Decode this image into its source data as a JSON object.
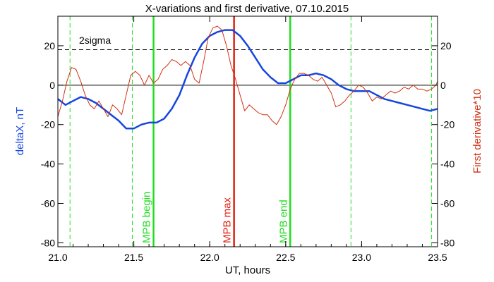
{
  "chart_data": {
    "type": "line",
    "title": "X-variations and first derivative, 07.10.2015",
    "xlabel": "UT, hours",
    "ylabel_left": "deltaX, nT",
    "ylabel_right": "First derivative*10",
    "xlim": [
      21.0,
      23.5
    ],
    "ylim": [
      -82,
      35
    ],
    "x_ticks": [
      "21.0",
      "21.5",
      "22.0",
      "22.5",
      "23.0",
      "23.5"
    ],
    "x_tick_values": [
      21.0,
      21.5,
      22.0,
      22.5,
      23.0,
      23.5
    ],
    "y_ticks": [
      "-80",
      "-60",
      "-40",
      "-20",
      "0",
      "20"
    ],
    "y_tick_values": [
      -80,
      -60,
      -40,
      -20,
      0,
      20
    ],
    "grid": false,
    "colors": {
      "deltaX": "#1446e0",
      "derivative": "#d03010",
      "mpb_edge": "#22dd22",
      "mpb_max": "#e02010",
      "zero": "#000000",
      "threshold": "#000000"
    },
    "threshold": {
      "label": "2sigma",
      "y": 18
    },
    "zero_line": 0,
    "markers": [
      {
        "label": "MPB begin",
        "x": 21.63,
        "color": "#22dd22"
      },
      {
        "label": "MPB max",
        "x": 22.16,
        "color": "#e02010"
      },
      {
        "label": "MPB end",
        "x": 22.53,
        "color": "#22dd22"
      }
    ],
    "dashed_verticals": [
      21.08,
      21.49,
      22.93,
      23.46
    ],
    "series": [
      {
        "name": "deltaX",
        "x": [
          21.0,
          21.05,
          21.1,
          21.15,
          21.2,
          21.25,
          21.3,
          21.35,
          21.4,
          21.45,
          21.5,
          21.55,
          21.6,
          21.65,
          21.7,
          21.75,
          21.8,
          21.85,
          21.9,
          21.95,
          22.0,
          22.05,
          22.1,
          22.15,
          22.2,
          22.25,
          22.3,
          22.35,
          22.4,
          22.45,
          22.5,
          22.55,
          22.6,
          22.65,
          22.7,
          22.75,
          22.8,
          22.85,
          22.9,
          22.95,
          23.0,
          23.05,
          23.1,
          23.15,
          23.2,
          23.25,
          23.3,
          23.35,
          23.4,
          23.45,
          23.5
        ],
        "y": [
          -7,
          -10,
          -8,
          -6,
          -7,
          -9,
          -12,
          -15,
          -18,
          -22,
          -22,
          -20,
          -19,
          -19,
          -17,
          -12,
          -5,
          5,
          14,
          21,
          25,
          27,
          28,
          28,
          25,
          20,
          14,
          8,
          4,
          1,
          1,
          3,
          5,
          5,
          6,
          5,
          3,
          0,
          -2,
          -3,
          -3,
          -3,
          -5,
          -7,
          -8,
          -9,
          -10,
          -11,
          -12,
          -13,
          -12
        ]
      },
      {
        "name": "derivative",
        "x": [
          21.0,
          21.03,
          21.06,
          21.09,
          21.12,
          21.15,
          21.18,
          21.21,
          21.24,
          21.27,
          21.3,
          21.33,
          21.36,
          21.39,
          21.42,
          21.45,
          21.48,
          21.51,
          21.54,
          21.57,
          21.6,
          21.63,
          21.66,
          21.69,
          21.72,
          21.75,
          21.78,
          21.81,
          21.84,
          21.87,
          21.9,
          21.93,
          21.96,
          21.99,
          22.02,
          22.05,
          22.08,
          22.11,
          22.14,
          22.17,
          22.2,
          22.23,
          22.26,
          22.29,
          22.32,
          22.35,
          22.38,
          22.41,
          22.44,
          22.47,
          22.5,
          22.53,
          22.56,
          22.59,
          22.62,
          22.65,
          22.68,
          22.71,
          22.74,
          22.77,
          22.8,
          22.83,
          22.86,
          22.89,
          22.92,
          22.95,
          22.98,
          23.01,
          23.04,
          23.07,
          23.1,
          23.13,
          23.16,
          23.19,
          23.22,
          23.25,
          23.28,
          23.31,
          23.34,
          23.37,
          23.4,
          23.43,
          23.46,
          23.49,
          23.5
        ],
        "y": [
          -16,
          -8,
          2,
          9,
          8,
          2,
          -5,
          -10,
          -12,
          -8,
          -12,
          -16,
          -10,
          -12,
          -15,
          -5,
          5,
          7,
          5,
          0,
          5,
          1,
          3,
          8,
          10,
          13,
          12,
          10,
          12,
          10,
          3,
          1,
          12,
          24,
          29,
          30,
          28,
          20,
          10,
          3,
          -5,
          -13,
          -10,
          -12,
          -14,
          -15,
          -15,
          -18,
          -20,
          -16,
          -10,
          -2,
          3,
          6,
          6,
          5,
          3,
          2,
          4,
          0,
          -4,
          -11,
          -10,
          -8,
          -5,
          -3,
          0,
          -1,
          -4,
          -8,
          -6,
          -7,
          -5,
          -3,
          -4,
          -3,
          -1,
          -2,
          0,
          -2,
          -2,
          -3,
          -2,
          0,
          2
        ]
      }
    ]
  }
}
